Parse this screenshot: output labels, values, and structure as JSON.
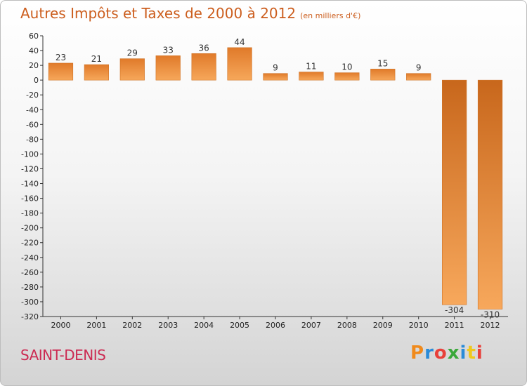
{
  "chart_data": {
    "type": "bar",
    "title": "Autres Impôts et Taxes de 2000 à 2012",
    "subtitle": "(en milliers d'€)",
    "categories": [
      "2000",
      "2001",
      "2002",
      "2003",
      "2004",
      "2005",
      "2006",
      "2007",
      "2008",
      "2009",
      "2010",
      "2011",
      "2012"
    ],
    "values": [
      23,
      21,
      29,
      33,
      36,
      44,
      9,
      11,
      10,
      15,
      9,
      -304,
      -310
    ],
    "value_labels": [
      "23",
      "21",
      "29",
      "33",
      "36",
      "44",
      "9",
      "11",
      "10",
      "15",
      "9",
      "-304",
      "-310"
    ],
    "ylim": [
      -320,
      60
    ],
    "yticks": [
      "60",
      "40",
      "20",
      "0",
      "-20",
      "-40",
      "-60",
      "-80",
      "-100",
      "-120",
      "-140",
      "-160",
      "-180",
      "-200",
      "-220",
      "-240",
      "-260",
      "-280",
      "-300",
      "-320"
    ],
    "grid": false,
    "bar_color": "#e8883a"
  },
  "footer": {
    "place": "SAINT-DENIS",
    "logo_letters": [
      "P",
      "r",
      "o",
      "x",
      "i",
      "t",
      "i"
    ],
    "logo_colors": [
      "#f08a1c",
      "#2a8bd8",
      "#e8403a",
      "#3aa83a",
      "#2a8bd8",
      "#f0c81c",
      "#e8403a"
    ]
  }
}
